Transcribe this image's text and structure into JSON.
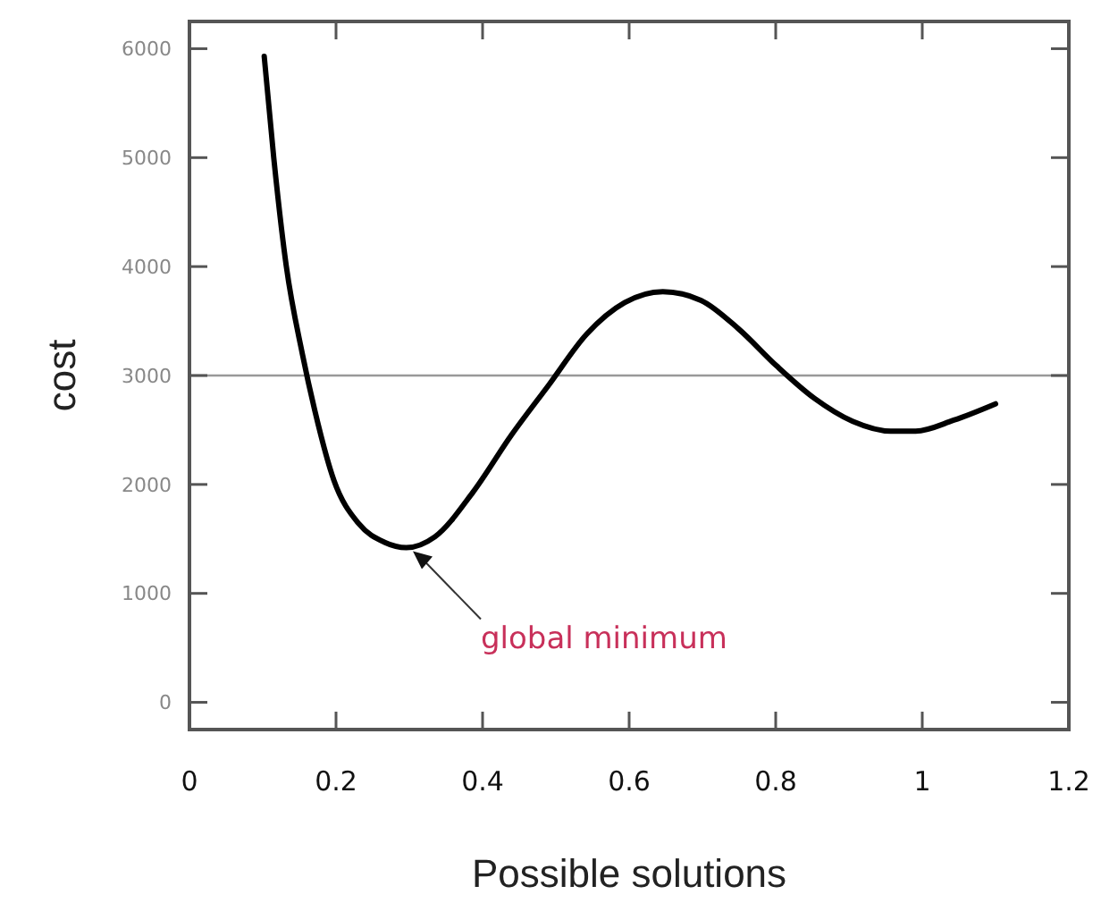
{
  "chart_data": {
    "type": "line",
    "xlabel": "Possible solutions",
    "ylabel": "cost",
    "x": [
      0.102,
      0.115,
      0.132,
      0.154,
      0.171,
      0.197,
      0.231,
      0.266,
      0.296,
      0.335,
      0.387,
      0.439,
      0.49,
      0.542,
      0.594,
      0.646,
      0.698,
      0.749,
      0.801,
      0.853,
      0.905,
      0.957,
      0.991,
      1.043,
      1.1
    ],
    "series": [
      {
        "color": "#000000",
        "values": [
          5930,
          5000,
          4010,
          3200,
          2680,
          2040,
          1640,
          1470,
          1420,
          1520,
          1930,
          2450,
          2910,
          3380,
          3670,
          3770,
          3690,
          3430,
          3090,
          2790,
          2580,
          2490,
          2490,
          2590,
          2740
        ]
      }
    ],
    "xlim": [
      0,
      1.2
    ],
    "xticks": [
      0,
      0.2,
      0.4,
      0.6,
      0.8,
      1,
      1.2
    ],
    "ylim": [
      -250,
      6250
    ],
    "yticks": [
      0,
      1000,
      2000,
      3000,
      4000,
      5000,
      6000
    ],
    "ref_lines": [
      {
        "axis": "y",
        "value": 3000,
        "color": "#999999"
      }
    ],
    "annotations": [
      {
        "text": "global minimum",
        "x": 0.3,
        "y": 1420
      }
    ],
    "grid": false,
    "marker": "none",
    "line_style": "solid"
  }
}
